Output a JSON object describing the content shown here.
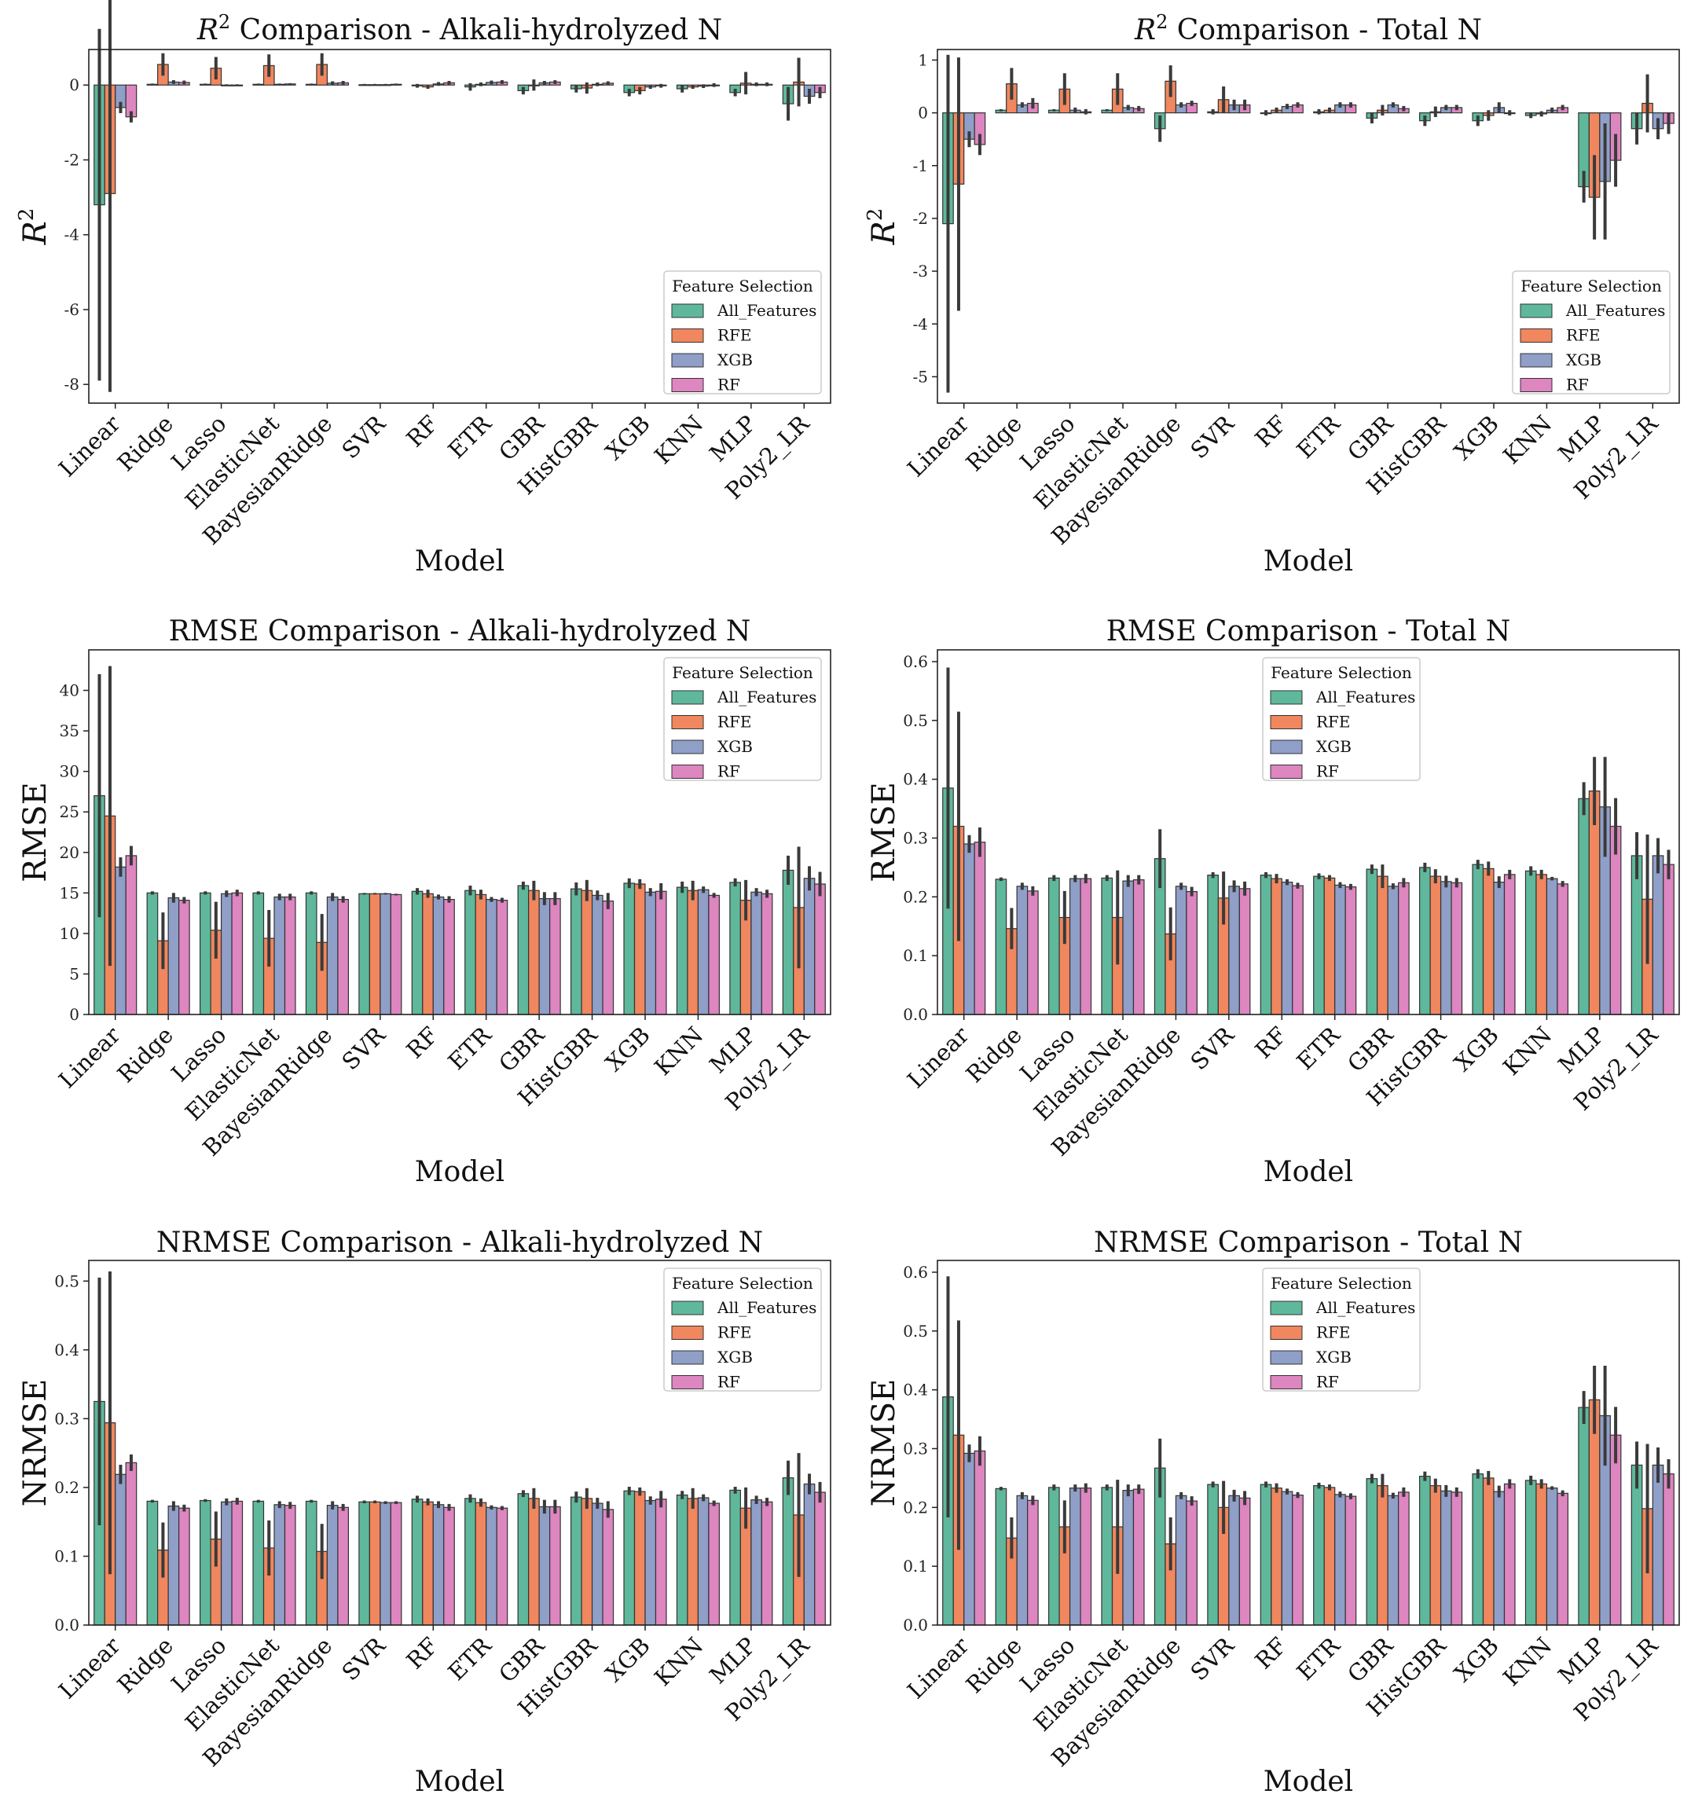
{
  "figure_type": "grouped bar chart grid",
  "colors": {
    "All_Features": "#5fb89b",
    "RFE": "#f0875e",
    "XGB": "#8f9fc8",
    "RF": "#dd86c0",
    "error_bar": "#3a3a3a"
  },
  "chart_data": [
    {
      "type": "bar",
      "title_prefix": "R",
      "title_sup": "2",
      "title": " Comparison - Alkali-hydrolyzed N",
      "xlabel": "Model",
      "ylabel": "R",
      "ylabel_sup": "2",
      "ylim": [
        -8.5,
        0.95
      ],
      "yticks": [
        0,
        -2,
        -4,
        -6,
        -8
      ],
      "legend_title": "Feature Selection",
      "legend_position": "lower-right",
      "categories": [
        "Linear",
        "Ridge",
        "Lasso",
        "ElasticNet",
        "BayesianRidge",
        "SVR",
        "RF",
        "ETR",
        "GBR",
        "HistGBR",
        "XGB",
        "KNN",
        "MLP",
        "Poly2_LR"
      ],
      "series": [
        {
          "name": "All_Features",
          "values": [
            -3.2,
            0.02,
            0.02,
            0.02,
            0.02,
            0.01,
            -0.02,
            -0.05,
            -0.15,
            -0.1,
            -0.2,
            -0.1,
            -0.2,
            -0.5
          ],
          "errors": [
            4.7,
            0.02,
            0.02,
            0.02,
            0.02,
            0.02,
            0.05,
            0.1,
            0.1,
            0.1,
            0.1,
            0.1,
            0.1,
            0.45
          ]
        },
        {
          "name": "RFE",
          "values": [
            -2.9,
            0.55,
            0.45,
            0.52,
            0.55,
            0.01,
            -0.05,
            0.02,
            0.0,
            -0.08,
            -0.15,
            -0.05,
            0.05,
            0.08
          ],
          "errors": [
            5.3,
            0.3,
            0.3,
            0.3,
            0.3,
            0.02,
            0.05,
            0.05,
            0.15,
            0.15,
            0.1,
            0.05,
            0.3,
            0.65
          ]
        },
        {
          "name": "XGB",
          "values": [
            -0.6,
            0.08,
            0.0,
            0.02,
            0.05,
            0.01,
            0.03,
            0.07,
            0.06,
            0.02,
            -0.05,
            -0.03,
            0.02,
            -0.3
          ],
          "errors": [
            0.15,
            0.05,
            0.02,
            0.02,
            0.05,
            0.02,
            0.05,
            0.05,
            0.05,
            0.05,
            0.05,
            0.05,
            0.05,
            0.2
          ]
        },
        {
          "name": "RF",
          "values": [
            -0.85,
            0.07,
            0.0,
            0.03,
            0.06,
            0.02,
            0.06,
            0.08,
            0.08,
            0.05,
            -0.02,
            0.0,
            0.02,
            -0.2
          ],
          "errors": [
            0.15,
            0.05,
            0.02,
            0.02,
            0.05,
            0.02,
            0.05,
            0.05,
            0.05,
            0.05,
            0.05,
            0.05,
            0.05,
            0.15
          ]
        }
      ]
    },
    {
      "type": "bar",
      "title_prefix": "R",
      "title_sup": "2",
      "title": " Comparison - Total N",
      "xlabel": "Model",
      "ylabel": "R",
      "ylabel_sup": "2",
      "ylim": [
        -5.5,
        1.2
      ],
      "yticks": [
        1,
        0,
        -1,
        -2,
        -3,
        -4,
        -5
      ],
      "legend_title": "Feature Selection",
      "legend_position": "lower-right",
      "categories": [
        "Linear",
        "Ridge",
        "Lasso",
        "ElasticNet",
        "BayesianRidge",
        "SVR",
        "RF",
        "ETR",
        "GBR",
        "HistGBR",
        "XGB",
        "KNN",
        "MLP",
        "Poly2_LR"
      ],
      "series": [
        {
          "name": "All_Features",
          "values": [
            -2.1,
            0.05,
            0.05,
            0.05,
            -0.3,
            0.02,
            0.0,
            0.02,
            -0.1,
            -0.15,
            -0.15,
            -0.05,
            -1.4,
            -0.3
          ],
          "errors": [
            3.2,
            0.02,
            0.02,
            0.02,
            0.25,
            0.05,
            0.05,
            0.05,
            0.1,
            0.1,
            0.1,
            0.05,
            0.3,
            0.3
          ]
        },
        {
          "name": "RFE",
          "values": [
            -1.35,
            0.55,
            0.45,
            0.45,
            0.6,
            0.25,
            0.05,
            0.05,
            0.05,
            0.02,
            -0.05,
            -0.02,
            -1.6,
            0.18
          ],
          "errors": [
            2.4,
            0.3,
            0.3,
            0.3,
            0.3,
            0.25,
            0.05,
            0.05,
            0.1,
            0.1,
            0.1,
            0.05,
            0.8,
            0.55
          ]
        },
        {
          "name": "XGB",
          "values": [
            -0.5,
            0.15,
            0.05,
            0.1,
            0.15,
            0.15,
            0.12,
            0.15,
            0.15,
            0.1,
            0.1,
            0.05,
            -1.3,
            -0.3
          ],
          "errors": [
            0.15,
            0.05,
            0.05,
            0.05,
            0.05,
            0.1,
            0.05,
            0.05,
            0.05,
            0.05,
            0.1,
            0.05,
            1.1,
            0.2
          ]
        },
        {
          "name": "RF",
          "values": [
            -0.6,
            0.18,
            0.02,
            0.08,
            0.18,
            0.15,
            0.15,
            0.15,
            0.08,
            0.1,
            0.0,
            0.1,
            -0.9,
            -0.2
          ],
          "errors": [
            0.2,
            0.1,
            0.05,
            0.05,
            0.05,
            0.1,
            0.05,
            0.05,
            0.05,
            0.05,
            0.05,
            0.05,
            0.5,
            0.2
          ]
        }
      ]
    },
    {
      "type": "bar",
      "title_prefix": "",
      "title_sup": "",
      "title": "RMSE Comparison - Alkali-hydrolyzed N",
      "xlabel": "Model",
      "ylabel": "RMSE",
      "ylabel_sup": "",
      "ylim": [
        0,
        45
      ],
      "yticks": [
        0,
        5,
        10,
        15,
        20,
        25,
        30,
        35,
        40
      ],
      "legend_title": "Feature Selection",
      "legend_position": "top-right",
      "categories": [
        "Linear",
        "Ridge",
        "Lasso",
        "ElasticNet",
        "BayesianRidge",
        "SVR",
        "RF",
        "ETR",
        "GBR",
        "HistGBR",
        "XGB",
        "KNN",
        "MLP",
        "Poly2_LR"
      ],
      "series": [
        {
          "name": "All_Features",
          "values": [
            27,
            15,
            15,
            15,
            15,
            14.9,
            15.2,
            15.3,
            15.9,
            15.5,
            16.2,
            15.7,
            16.3,
            17.8
          ],
          "errors": [
            15,
            0.2,
            0.2,
            0.2,
            0.2,
            0.1,
            0.4,
            0.6,
            0.5,
            0.8,
            0.6,
            0.7,
            0.5,
            1.8
          ]
        },
        {
          "name": "RFE",
          "values": [
            24.5,
            9.1,
            10.4,
            9.4,
            8.9,
            14.9,
            14.9,
            14.8,
            15.3,
            15.3,
            16.1,
            15.3,
            14.1,
            13.2
          ],
          "errors": [
            18.5,
            3.5,
            3.5,
            3.5,
            3.5,
            0.1,
            0.5,
            0.6,
            1.2,
            1.3,
            0.6,
            1.2,
            2.5,
            7.5
          ]
        },
        {
          "name": "XGB",
          "values": [
            18.2,
            14.4,
            14.9,
            14.5,
            14.5,
            14.9,
            14.5,
            14.2,
            14.3,
            14.7,
            15.1,
            15.4,
            15.1,
            16.8
          ],
          "errors": [
            1.2,
            0.6,
            0.4,
            0.4,
            0.5,
            0.1,
            0.3,
            0.3,
            0.8,
            0.6,
            0.5,
            0.4,
            0.5,
            1.5
          ]
        },
        {
          "name": "RF",
          "values": [
            19.6,
            14.1,
            15,
            14.5,
            14.2,
            14.8,
            14.2,
            14.1,
            14.3,
            14,
            15.2,
            14.7,
            14.9,
            16.1
          ],
          "errors": [
            1.2,
            0.4,
            0.4,
            0.4,
            0.4,
            0.1,
            0.4,
            0.3,
            0.8,
            1,
            1,
            0.3,
            0.5,
            1.5
          ]
        }
      ]
    },
    {
      "type": "bar",
      "title_prefix": "",
      "title_sup": "",
      "title": "RMSE Comparison - Total N",
      "xlabel": "Model",
      "ylabel": "RMSE",
      "ylabel_sup": "",
      "ylim": [
        0,
        0.62
      ],
      "yticks": [
        0.0,
        0.1,
        0.2,
        0.3,
        0.4,
        0.5,
        0.6
      ],
      "legend_title": "Feature Selection",
      "legend_position": "upper-center",
      "categories": [
        "Linear",
        "Ridge",
        "Lasso",
        "ElasticNet",
        "BayesianRidge",
        "SVR",
        "RF",
        "ETR",
        "GBR",
        "HistGBR",
        "XGB",
        "KNN",
        "MLP",
        "Poly2_LR"
      ],
      "series": [
        {
          "name": "All_Features",
          "values": [
            0.385,
            0.23,
            0.232,
            0.232,
            0.265,
            0.237,
            0.237,
            0.235,
            0.247,
            0.25,
            0.255,
            0.244,
            0.367,
            0.27
          ],
          "errors": [
            0.205,
            0.003,
            0.005,
            0.005,
            0.05,
            0.005,
            0.005,
            0.005,
            0.008,
            0.008,
            0.008,
            0.008,
            0.028,
            0.04
          ]
        },
        {
          "name": "RFE",
          "values": [
            0.32,
            0.146,
            0.165,
            0.165,
            0.137,
            0.198,
            0.231,
            0.232,
            0.235,
            0.235,
            0.248,
            0.238,
            0.38,
            0.196
          ],
          "errors": [
            0.195,
            0.035,
            0.045,
            0.08,
            0.045,
            0.045,
            0.008,
            0.005,
            0.02,
            0.012,
            0.012,
            0.008,
            0.058,
            0.11
          ]
        },
        {
          "name": "XGB",
          "values": [
            0.29,
            0.218,
            0.231,
            0.227,
            0.218,
            0.218,
            0.225,
            0.22,
            0.218,
            0.226,
            0.225,
            0.231,
            0.353,
            0.27
          ],
          "errors": [
            0.015,
            0.006,
            0.006,
            0.01,
            0.006,
            0.01,
            0.005,
            0.005,
            0.005,
            0.01,
            0.01,
            0.003,
            0.085,
            0.03
          ]
        },
        {
          "name": "RF",
          "values": [
            0.293,
            0.21,
            0.231,
            0.229,
            0.209,
            0.214,
            0.219,
            0.217,
            0.224,
            0.224,
            0.238,
            0.222,
            0.32,
            0.255
          ],
          "errors": [
            0.025,
            0.008,
            0.008,
            0.008,
            0.008,
            0.012,
            0.005,
            0.005,
            0.008,
            0.008,
            0.008,
            0.005,
            0.048,
            0.025
          ]
        }
      ]
    },
    {
      "type": "bar",
      "title_prefix": "",
      "title_sup": "",
      "title": "NRMSE Comparison - Alkali-hydrolyzed N",
      "xlabel": "Model",
      "ylabel": "NRMSE",
      "ylabel_sup": "",
      "ylim": [
        0,
        0.53
      ],
      "yticks": [
        0.0,
        0.1,
        0.2,
        0.3,
        0.4,
        0.5
      ],
      "legend_title": "Feature Selection",
      "legend_position": "top-right",
      "categories": [
        "Linear",
        "Ridge",
        "Lasso",
        "ElasticNet",
        "BayesianRidge",
        "SVR",
        "RF",
        "ETR",
        "GBR",
        "HistGBR",
        "XGB",
        "KNN",
        "MLP",
        "Poly2_LR"
      ],
      "series": [
        {
          "name": "All_Features",
          "values": [
            0.325,
            0.18,
            0.181,
            0.18,
            0.18,
            0.179,
            0.183,
            0.184,
            0.191,
            0.186,
            0.195,
            0.189,
            0.196,
            0.214
          ],
          "errors": [
            0.18,
            0.002,
            0.002,
            0.002,
            0.002,
            0.002,
            0.005,
            0.006,
            0.005,
            0.008,
            0.006,
            0.006,
            0.005,
            0.025
          ]
        },
        {
          "name": "RFE",
          "values": [
            0.294,
            0.109,
            0.125,
            0.112,
            0.107,
            0.179,
            0.179,
            0.178,
            0.184,
            0.184,
            0.194,
            0.184,
            0.17,
            0.16
          ],
          "errors": [
            0.22,
            0.04,
            0.04,
            0.04,
            0.04,
            0.002,
            0.005,
            0.006,
            0.015,
            0.015,
            0.006,
            0.015,
            0.03,
            0.09
          ]
        },
        {
          "name": "XGB",
          "values": [
            0.219,
            0.173,
            0.179,
            0.175,
            0.174,
            0.178,
            0.175,
            0.171,
            0.172,
            0.177,
            0.181,
            0.185,
            0.182,
            0.205
          ],
          "errors": [
            0.014,
            0.007,
            0.005,
            0.005,
            0.006,
            0.002,
            0.005,
            0.003,
            0.01,
            0.008,
            0.006,
            0.005,
            0.006,
            0.015
          ]
        },
        {
          "name": "RF",
          "values": [
            0.236,
            0.17,
            0.18,
            0.174,
            0.171,
            0.178,
            0.171,
            0.17,
            0.172,
            0.168,
            0.183,
            0.177,
            0.179,
            0.193
          ],
          "errors": [
            0.012,
            0.005,
            0.005,
            0.005,
            0.005,
            0.002,
            0.005,
            0.003,
            0.01,
            0.012,
            0.012,
            0.004,
            0.006,
            0.015
          ]
        }
      ]
    },
    {
      "type": "bar",
      "title_prefix": "",
      "title_sup": "",
      "title": "NRMSE Comparison - Total N",
      "xlabel": "Model",
      "ylabel": "NRMSE",
      "ylabel_sup": "",
      "ylim": [
        0,
        0.62
      ],
      "yticks": [
        0.0,
        0.1,
        0.2,
        0.3,
        0.4,
        0.5,
        0.6
      ],
      "legend_title": "Feature Selection",
      "legend_position": "upper-center",
      "categories": [
        "Linear",
        "Ridge",
        "Lasso",
        "ElasticNet",
        "BayesianRidge",
        "SVR",
        "RF",
        "ETR",
        "GBR",
        "HistGBR",
        "XGB",
        "KNN",
        "MLP",
        "Poly2_LR"
      ],
      "series": [
        {
          "name": "All_Features",
          "values": [
            0.388,
            0.232,
            0.234,
            0.234,
            0.267,
            0.239,
            0.239,
            0.237,
            0.249,
            0.253,
            0.257,
            0.246,
            0.37,
            0.272
          ],
          "errors": [
            0.205,
            0.003,
            0.005,
            0.005,
            0.05,
            0.005,
            0.005,
            0.005,
            0.008,
            0.008,
            0.008,
            0.008,
            0.028,
            0.04
          ]
        },
        {
          "name": "RFE",
          "values": [
            0.323,
            0.148,
            0.167,
            0.167,
            0.138,
            0.2,
            0.233,
            0.234,
            0.237,
            0.237,
            0.25,
            0.24,
            0.383,
            0.198
          ],
          "errors": [
            0.195,
            0.035,
            0.045,
            0.08,
            0.045,
            0.045,
            0.008,
            0.005,
            0.02,
            0.012,
            0.012,
            0.008,
            0.058,
            0.11
          ]
        },
        {
          "name": "XGB",
          "values": [
            0.292,
            0.22,
            0.233,
            0.229,
            0.22,
            0.22,
            0.227,
            0.222,
            0.22,
            0.228,
            0.227,
            0.233,
            0.356,
            0.272
          ],
          "errors": [
            0.015,
            0.006,
            0.006,
            0.01,
            0.006,
            0.01,
            0.005,
            0.005,
            0.005,
            0.01,
            0.01,
            0.003,
            0.085,
            0.03
          ]
        },
        {
          "name": "RF",
          "values": [
            0.296,
            0.212,
            0.233,
            0.231,
            0.211,
            0.216,
            0.221,
            0.219,
            0.226,
            0.226,
            0.24,
            0.224,
            0.323,
            0.257
          ],
          "errors": [
            0.025,
            0.008,
            0.008,
            0.008,
            0.008,
            0.012,
            0.005,
            0.005,
            0.008,
            0.008,
            0.008,
            0.005,
            0.048,
            0.025
          ]
        }
      ]
    }
  ]
}
